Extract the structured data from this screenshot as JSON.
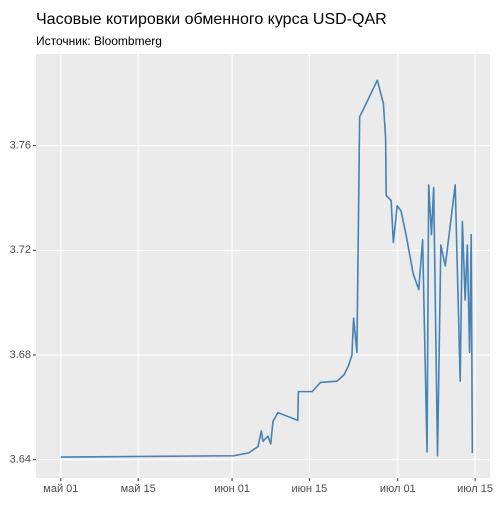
{
  "chart_data": {
    "type": "line",
    "title": "Часовые котировки обменного курса USD-QAR",
    "subtitle": "Источник: Bloombmerg",
    "x": [
      0,
      31.3,
      34,
      35.7,
      36.3,
      36.6,
      37.5,
      38,
      38.4,
      39.3,
      40.5,
      42.9,
      43,
      45.5,
      47,
      50,
      51.3,
      52.1,
      52.7,
      53,
      53.6,
      54.1,
      54.8,
      57.3,
      58.4,
      58.8,
      58.9,
      59.8,
      60.2,
      60.9,
      61.6,
      62.5,
      63.8,
      64.8,
      65.5,
      66.3,
      66.6,
      67.1,
      67.5,
      68.2,
      68.8,
      69.6,
      71.4,
      72.3,
      72.7,
      73.2,
      73.6,
      74,
      74.3,
      74.5
    ],
    "series": [
      {
        "name": "USD-QAR",
        "color": "#4682b4",
        "values": [
          3.641,
          3.6415,
          3.6426,
          3.645,
          3.651,
          3.647,
          3.649,
          3.646,
          3.6546,
          3.658,
          3.657,
          3.655,
          3.666,
          3.666,
          3.6695,
          3.67,
          3.6725,
          3.676,
          3.68,
          3.694,
          3.681,
          3.771,
          3.774,
          3.785,
          3.776,
          3.763,
          3.741,
          3.739,
          3.723,
          3.737,
          3.735,
          3.726,
          3.711,
          3.705,
          3.724,
          3.643,
          3.745,
          3.726,
          3.744,
          3.6415,
          3.722,
          3.714,
          3.745,
          3.67,
          3.731,
          3.701,
          3.722,
          3.681,
          3.726,
          3.6425
        ]
      }
    ],
    "xlim": [
      -4.5,
      77.7
    ],
    "xticks": [
      {
        "value": 0,
        "label": "май 01"
      },
      {
        "value": 14,
        "label": "май 15"
      },
      {
        "value": 31,
        "label": "июн 01"
      },
      {
        "value": 45,
        "label": "июн 15"
      },
      {
        "value": 61,
        "label": "июл 01"
      },
      {
        "value": 75,
        "label": "июл 15"
      }
    ],
    "ylim": [
      3.633,
      3.795
    ],
    "yticks": [
      3.64,
      3.68,
      3.72,
      3.76
    ],
    "grid": true
  }
}
